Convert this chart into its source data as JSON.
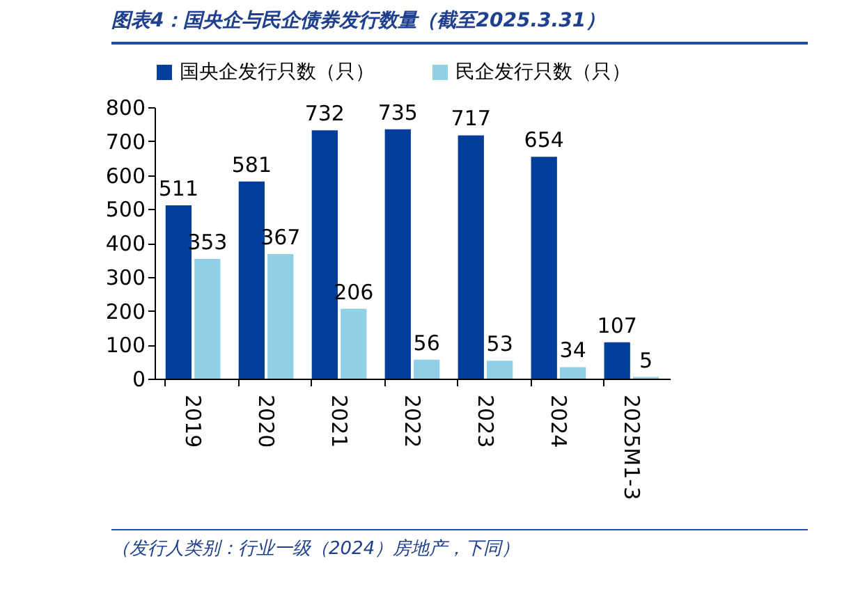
{
  "chart_data": {
    "type": "bar",
    "title": "图表4：国央企与民企债券发行数量（截至2025.3.31）",
    "categories": [
      "2019",
      "2020",
      "2021",
      "2022",
      "2023",
      "2024",
      "2025M1-3"
    ],
    "series": [
      {
        "name": "国央企发行只数（只）",
        "color": "#003e9a",
        "values": [
          511,
          581,
          732,
          735,
          717,
          654,
          107
        ]
      },
      {
        "name": "民企发行只数（只）",
        "color": "#8fd0e6",
        "values": [
          353,
          367,
          206,
          56,
          53,
          34,
          5
        ]
      }
    ],
    "ylim": [
      0,
      800
    ],
    "yticks": [
      0,
      100,
      200,
      300,
      400,
      500,
      600,
      700,
      800
    ],
    "grid": false,
    "legend": "top",
    "data_labels": true,
    "annotations": [
      "（发行人类别：行业一级（2024）房地产，下同）"
    ]
  }
}
